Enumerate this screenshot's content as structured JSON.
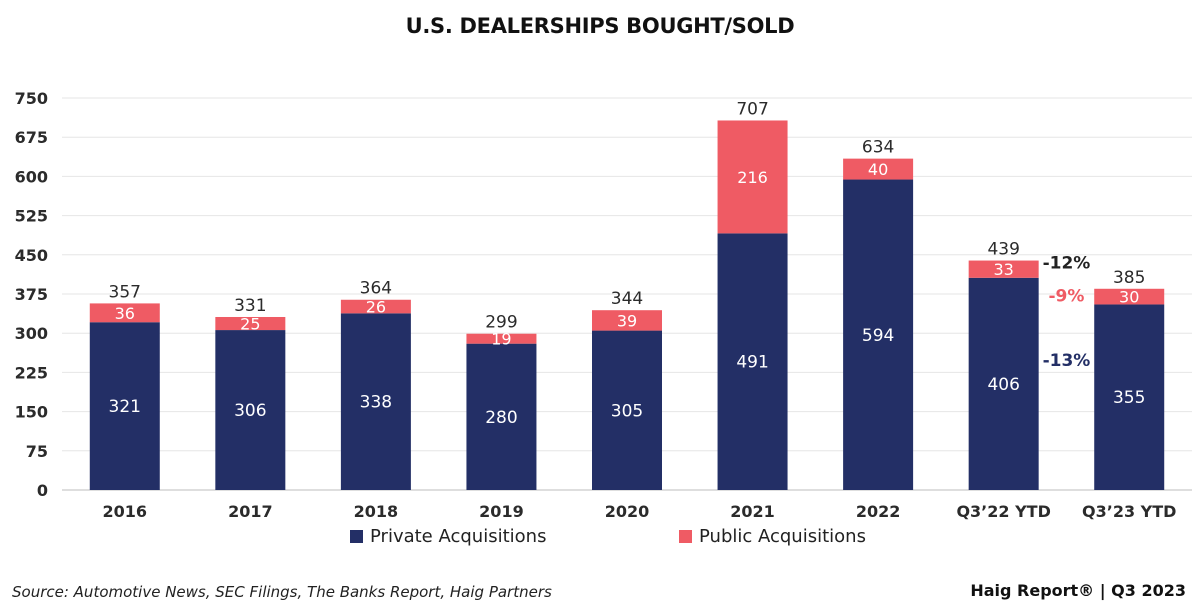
{
  "chart_data": {
    "type": "bar",
    "stacked": true,
    "title": "U.S. DEALERSHIPS BOUGHT/SOLD",
    "categories": [
      "2016",
      "2017",
      "2018",
      "2019",
      "2020",
      "2021",
      "2022",
      "Q3’22 YTD",
      "Q3’23 YTD"
    ],
    "series": [
      {
        "name": "Private Acquisitions",
        "color": "#232f66",
        "values": [
          321,
          306,
          338,
          280,
          305,
          491,
          594,
          406,
          355
        ]
      },
      {
        "name": "Public Acquisitions",
        "color": "#ef5b64",
        "values": [
          36,
          25,
          26,
          19,
          39,
          216,
          40,
          33,
          30
        ]
      }
    ],
    "totals": [
      "357",
      "331",
      "364",
      "299",
      "344",
      "707",
      "634",
      "439",
      "385"
    ],
    "ylim": [
      0,
      750
    ],
    "yticks": [
      "0",
      "75",
      "150",
      "225",
      "300",
      "375",
      "450",
      "525",
      "600",
      "675",
      "750"
    ],
    "grid": true,
    "legend_position": "bottom",
    "annotations": [
      {
        "text": "-12%",
        "color": "#222222",
        "refers_to": "total"
      },
      {
        "text": "-9%",
        "color": "#ef5b64",
        "refers_to": "Public Acquisitions"
      },
      {
        "text": "-13%",
        "color": "#232f66",
        "refers_to": "Private Acquisitions"
      }
    ]
  },
  "footer": {
    "source": "Source: Automotive News, SEC Filings, The Banks Report, Haig Partners",
    "brand": "Haig Report® | Q3 2023"
  }
}
